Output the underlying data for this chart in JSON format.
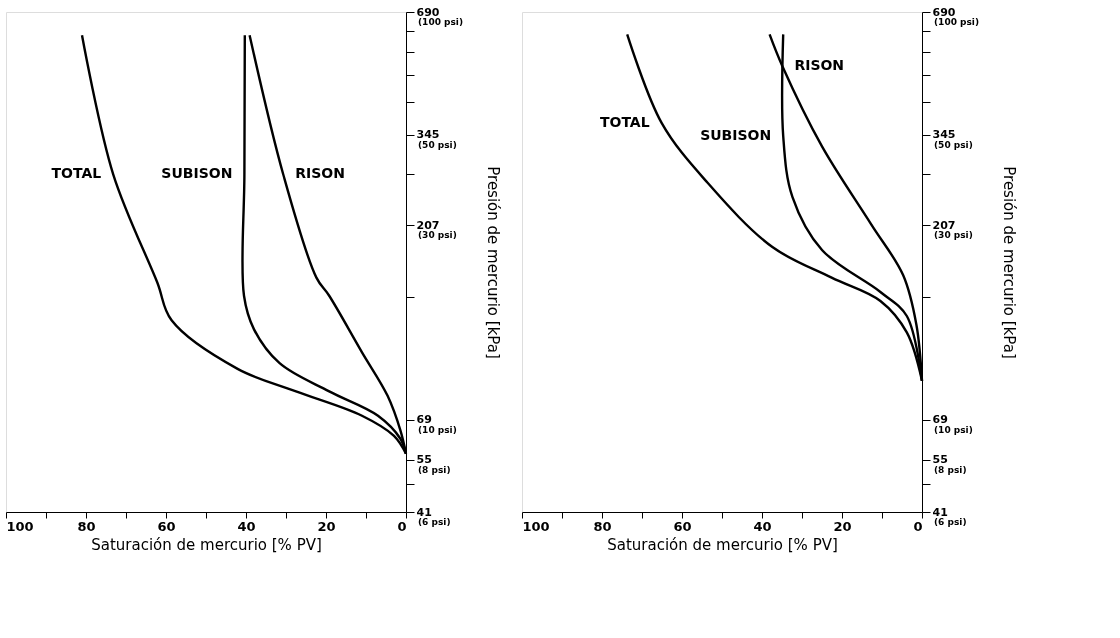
{
  "chart_data": [
    {
      "type": "line",
      "xlabel": "Saturación de mercurio [% PV]",
      "ylabel": "Presión de mercurio [kPa]",
      "log": "y",
      "xlim": [
        100,
        0
      ],
      "xticks": [
        100,
        {
          "value": 90,
          "label": null
        },
        80,
        {
          "value": 70,
          "label": null
        },
        60,
        {
          "value": 50,
          "label": null
        },
        40,
        {
          "value": 30,
          "label": null
        },
        20,
        {
          "value": 10,
          "label": null
        },
        0
      ],
      "ylim": [
        41,
        690
      ],
      "yticks": [
        690,
        {
          "value": 621,
          "label": null
        },
        {
          "value": 552,
          "label": null
        },
        {
          "value": 483,
          "label": null
        },
        {
          "value": 414,
          "label": null
        },
        345,
        {
          "value": 276,
          "label": null
        },
        207,
        {
          "value": 138,
          "label": null
        },
        69,
        55,
        {
          "value": 48,
          "label": null
        },
        41
      ],
      "annotations": [
        "(100 psi)",
        "(50 psi)",
        "(30 psi)",
        "(10 psi)",
        "(8 psi)",
        "(6 psi)"
      ],
      "series": [
        {
          "name": "TOTAL",
          "color": "#000000",
          "x": [
            81,
            73.2,
            62.2,
            58.6,
            42.1,
            27.5,
            11,
            3,
            0
          ],
          "values": [
            605,
            276,
            150,
            121,
            92,
            81,
            70.6,
            63,
            57
          ]
        },
        {
          "name": "SUBISON",
          "color": "#000000",
          "x": [
            40.3,
            40.4,
            40.5,
            38,
            31.6,
            19.2,
            7,
            1.4,
            0
          ],
          "values": [
            605,
            276,
            139,
            115,
            95,
            81,
            70.6,
            62,
            57
          ]
        },
        {
          "name": "RISON",
          "color": "#000000",
          "x": [
            39.1,
            30.7,
            22.4,
            19.2,
            11,
            4.6,
            1.4,
            0
          ],
          "values": [
            605,
            276,
            154,
            139,
            101,
            79,
            65,
            57
          ]
        }
      ]
    },
    {
      "type": "line",
      "xlabel": "Saturación de mercurio [% PV]",
      "ylabel": "Presión de mercurio [kPa]",
      "log": "y",
      "xlim": [
        100,
        0
      ],
      "xticks": [
        100,
        {
          "value": 90,
          "label": null
        },
        80,
        {
          "value": 70,
          "label": null
        },
        60,
        {
          "value": 50,
          "label": null
        },
        40,
        {
          "value": 30,
          "label": null
        },
        20,
        {
          "value": 10,
          "label": null
        },
        0
      ],
      "ylim": [
        41,
        690
      ],
      "yticks": [
        690,
        {
          "value": 621,
          "label": null
        },
        {
          "value": 552,
          "label": null
        },
        {
          "value": 483,
          "label": null
        },
        {
          "value": 414,
          "label": null
        },
        345,
        {
          "value": 276,
          "label": null
        },
        207,
        {
          "value": 138,
          "label": null
        },
        69,
        55,
        {
          "value": 48,
          "label": null
        },
        41
      ],
      "annotations": [
        "(100 psi)",
        "(50 psi)",
        "(30 psi)",
        "(10 psi)",
        "(8 psi)",
        "(6 psi)"
      ],
      "series": [
        {
          "name": "TOTAL",
          "color": "#000000",
          "x": [
            73.7,
            65.1,
            53.6,
            37.4,
            22.6,
            10.4,
            3.8,
            0
          ],
          "values": [
            608,
            369,
            263,
            183,
            154,
            135,
            113,
            86
          ]
        },
        {
          "name": "SUBISON",
          "color": "#000000",
          "x": [
            34.7,
            34.7,
            32.4,
            25,
            10.4,
            3.8,
            0
          ],
          "values": [
            608,
            343,
            243,
            180,
            142,
            124,
            86
          ]
        },
        {
          "name": "RISON",
          "color": "#000000",
          "x": [
            38.1,
            34.9,
            25,
            12.7,
            4.7,
            1.4,
            0
          ],
          "values": [
            608,
            508,
            323,
            208,
            156,
            118,
            86
          ]
        }
      ]
    }
  ]
}
